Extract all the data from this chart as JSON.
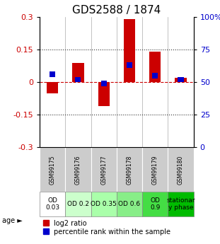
{
  "title": "GDS2588 / 1874",
  "samples": [
    "GSM99175",
    "GSM99176",
    "GSM99177",
    "GSM99178",
    "GSM99179",
    "GSM99180"
  ],
  "log2_ratio": [
    -0.05,
    0.09,
    -0.11,
    0.29,
    0.14,
    0.02
  ],
  "percentile_rank": [
    0.56,
    0.52,
    0.49,
    0.63,
    0.55,
    0.52
  ],
  "ylim_left": [
    -0.3,
    0.3
  ],
  "ylim_right": [
    0,
    100
  ],
  "yticks_left": [
    -0.3,
    -0.15,
    0,
    0.15,
    0.3
  ],
  "ytick_labels_left": [
    "-0.3",
    "-0.15",
    "0",
    "0.15",
    "0.3"
  ],
  "yticks_right": [
    0,
    25,
    50,
    75,
    100
  ],
  "ytick_labels_right": [
    "0",
    "25",
    "50",
    "75",
    "100%"
  ],
  "hlines": [
    0.15,
    -0.15
  ],
  "bar_width": 0.45,
  "age_labels": [
    "OD\n0.03",
    "OD 0.2",
    "OD 0.35",
    "OD 0.6",
    "OD\n0.9",
    "stationar\ny phase"
  ],
  "age_bg_colors": [
    "#ffffff",
    "#ccffcc",
    "#aaffaa",
    "#88ee88",
    "#44dd44",
    "#00bb00"
  ],
  "sample_bg_color": "#cccccc",
  "log2_color": "#cc0000",
  "percentile_color": "#0000cc",
  "zero_line_color": "#cc0000",
  "dotted_line_color": "#333333",
  "title_fontsize": 11,
  "axis_fontsize": 8,
  "legend_fontsize": 7,
  "table_fontsize": 6.5
}
